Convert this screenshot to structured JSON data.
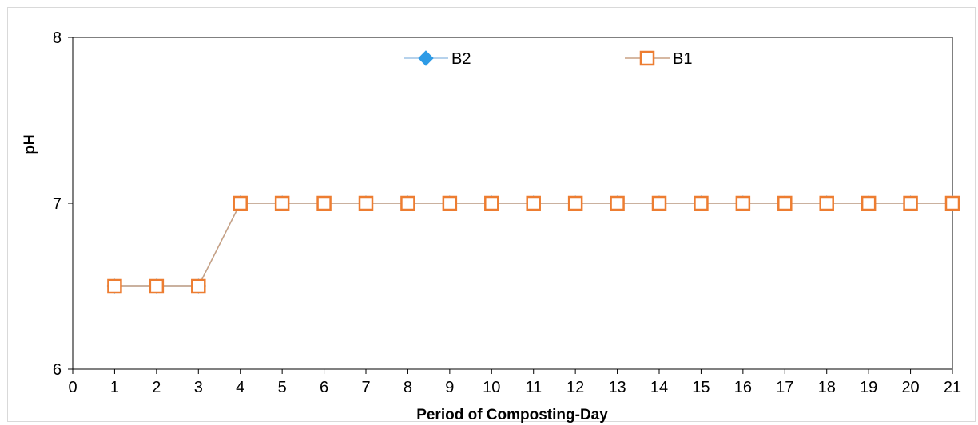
{
  "chart_data": {
    "type": "line",
    "title": "",
    "xlabel": "Period of Composting-Day",
    "ylabel": "pH",
    "xlim": [
      0,
      21
    ],
    "ylim": [
      6,
      8
    ],
    "x_ticks": [
      "0",
      "1",
      "2",
      "3",
      "4",
      "5",
      "6",
      "7",
      "8",
      "9",
      "10",
      "11",
      "12",
      "13",
      "14",
      "15",
      "16",
      "17",
      "18",
      "19",
      "20",
      "21"
    ],
    "y_ticks": [
      "6",
      "7",
      "8"
    ],
    "grid": false,
    "legend_position": "top-center",
    "x": [
      1,
      2,
      3,
      4,
      5,
      6,
      7,
      8,
      9,
      10,
      11,
      12,
      13,
      14,
      15,
      16,
      17,
      18,
      19,
      20,
      21
    ],
    "series": [
      {
        "name": "B2",
        "marker": "diamond",
        "line_color": "#9dc3e6",
        "marker_color": "#2e9be6",
        "values": [
          6.5,
          6.5,
          6.5,
          7,
          7,
          7,
          7,
          7,
          7,
          7,
          7,
          7,
          7,
          7,
          7,
          7,
          7,
          7,
          7,
          7,
          7
        ]
      },
      {
        "name": "B1",
        "marker": "square-open",
        "line_color": "#c9a183",
        "marker_color": "#ed7d31",
        "values": [
          6.5,
          6.5,
          6.5,
          7,
          7,
          7,
          7,
          7,
          7,
          7,
          7,
          7,
          7,
          7,
          7,
          7,
          7,
          7,
          7,
          7,
          7
        ]
      }
    ]
  }
}
